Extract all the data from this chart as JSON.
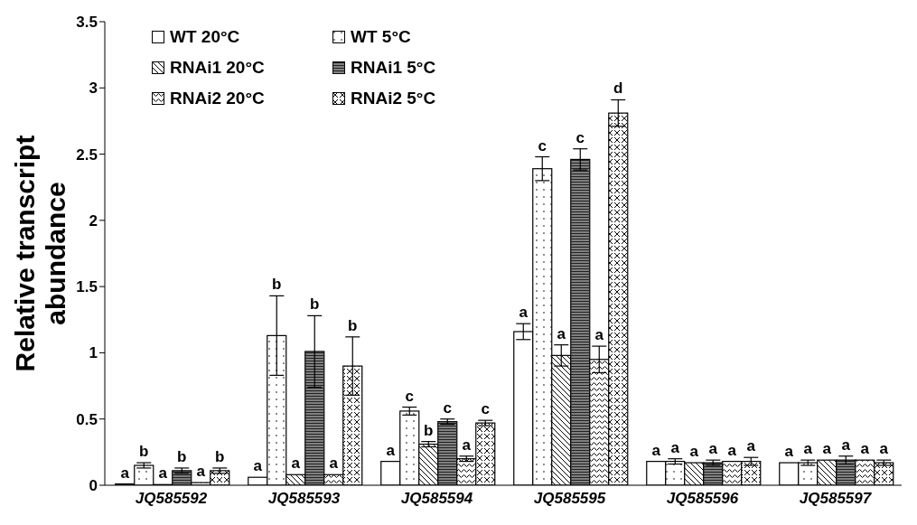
{
  "chart_data": {
    "type": "bar",
    "ylabel": "Relative transcript abundance",
    "categories": [
      "JQ585592",
      "JQ585593",
      "JQ585594",
      "JQ585595",
      "JQ585596",
      "JQ585597"
    ],
    "ylim": [
      0,
      3.5
    ],
    "yticks": [
      0,
      0.5,
      1,
      1.5,
      2,
      2.5,
      3,
      3.5
    ],
    "legend": "top left",
    "series": [
      {
        "name": "WT 20°C",
        "color": "#ffffff",
        "values": [
          0.01,
          0.06,
          0.18,
          1.16,
          0.18,
          0.17
        ],
        "errors": [
          null,
          null,
          null,
          0.06,
          null,
          null
        ],
        "value_labels": [
          "a",
          "a",
          "a",
          "a",
          "a",
          "a"
        ]
      },
      {
        "name": "WT 5°C",
        "color": "#ffffff",
        "values": [
          0.15,
          1.13,
          0.56,
          2.39,
          0.18,
          0.17
        ],
        "errors": [
          0.02,
          0.3,
          0.03,
          0.09,
          0.02,
          0.02
        ],
        "value_labels": [
          "b",
          "b",
          "c",
          "c",
          "a",
          "a"
        ]
      },
      {
        "name": "RNAi1 20°C",
        "color": "#ffffff",
        "values": [
          0.005,
          0.08,
          0.31,
          0.98,
          0.17,
          0.19
        ],
        "errors": [
          null,
          null,
          0.02,
          0.08,
          null,
          null
        ],
        "value_labels": [
          "a",
          "a",
          "b",
          "a",
          "a",
          "a"
        ]
      },
      {
        "name": "RNAi1 5°C",
        "color": "#808080",
        "values": [
          0.11,
          1.01,
          0.48,
          2.46,
          0.17,
          0.19
        ],
        "errors": [
          0.02,
          0.27,
          0.02,
          0.08,
          0.02,
          0.03
        ],
        "value_labels": [
          "b",
          "b",
          "c",
          "c",
          "a",
          "a"
        ]
      },
      {
        "name": "RNAi2 20°C",
        "color": "#ffffff",
        "values": [
          0.02,
          0.08,
          0.2,
          0.95,
          0.18,
          0.19
        ],
        "errors": [
          null,
          null,
          0.02,
          0.1,
          null,
          null
        ],
        "value_labels": [
          "a",
          "a",
          "a",
          "a",
          "a",
          "a"
        ]
      },
      {
        "name": "RNAi2 5°C",
        "color": "#ffffff",
        "values": [
          0.11,
          0.9,
          0.47,
          2.81,
          0.18,
          0.17
        ],
        "errors": [
          0.02,
          0.22,
          0.02,
          0.1,
          0.03,
          0.02
        ],
        "value_labels": [
          "b",
          "b",
          "c",
          "d",
          "a",
          "a"
        ]
      }
    ]
  }
}
